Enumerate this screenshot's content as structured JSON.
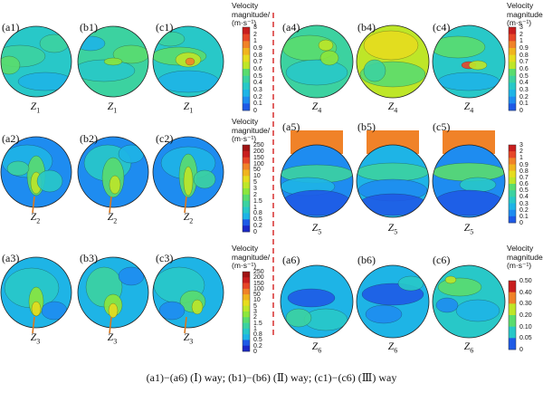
{
  "figure": {
    "panels": [
      {
        "id": "a1",
        "label": "(a1)",
        "zone": "1",
        "zone_letter": "Z"
      },
      {
        "id": "b1",
        "label": "(b1)",
        "zone": "1",
        "zone_letter": "Z"
      },
      {
        "id": "c1",
        "label": "(c1)",
        "zone": "1",
        "zone_letter": "Z"
      },
      {
        "id": "a2",
        "label": "(a2)",
        "zone": "2",
        "zone_letter": "Z"
      },
      {
        "id": "b2",
        "label": "(b2)",
        "zone": "2",
        "zone_letter": "Z"
      },
      {
        "id": "c2",
        "label": "(c2)",
        "zone": "2",
        "zone_letter": "Z"
      },
      {
        "id": "a3",
        "label": "(a3)",
        "zone": "3",
        "zone_letter": "Z"
      },
      {
        "id": "b3",
        "label": "(b3)",
        "zone": "3",
        "zone_letter": "Z"
      },
      {
        "id": "c3",
        "label": "(c3)",
        "zone": "3",
        "zone_letter": "Z"
      },
      {
        "id": "a4",
        "label": "(a4)",
        "zone": "4",
        "zone_letter": "Z"
      },
      {
        "id": "b4",
        "label": "(b4)",
        "zone": "4",
        "zone_letter": "Z"
      },
      {
        "id": "c4",
        "label": "(c4)",
        "zone": "4",
        "zone_letter": "Z"
      },
      {
        "id": "a5",
        "label": "(a5)",
        "zone": "5",
        "zone_letter": "Z"
      },
      {
        "id": "b5",
        "label": "(b5)",
        "zone": "5",
        "zone_letter": "Z"
      },
      {
        "id": "c5",
        "label": "(c5)",
        "zone": "5",
        "zone_letter": "Z"
      },
      {
        "id": "a6",
        "label": "(a6)",
        "zone": "6",
        "zone_letter": "Z"
      },
      {
        "id": "b6",
        "label": "(b6)",
        "zone": "6",
        "zone_letter": "Z"
      },
      {
        "id": "c6",
        "label": "(c6)",
        "zone": "6",
        "zone_letter": "Z"
      }
    ],
    "colorbars": [
      {
        "id": "cb1",
        "title_line1": "Velocity",
        "title_line2": "magnitude/",
        "title_line3": "(m·s⁻¹)",
        "ticks": [
          "3",
          "2",
          "1",
          "0.9",
          "0.8",
          "0.7",
          "0.6",
          "0.5",
          "0.4",
          "0.3",
          "0.2",
          "0.1",
          "0"
        ]
      },
      {
        "id": "cb2",
        "title_line1": "Velocity",
        "title_line2": "magnitude/",
        "title_line3": "(m·s⁻¹)",
        "ticks": [
          "250",
          "200",
          "150",
          "100",
          "50",
          "10",
          "5",
          "3",
          "2",
          "1.5",
          "1",
          "0.8",
          "0.5",
          "0.2",
          "0"
        ]
      },
      {
        "id": "cb3",
        "title_line1": "Velocity",
        "title_line2": "magnitude/",
        "title_line3": "(m·s⁻¹)",
        "ticks": [
          "250",
          "200",
          "150",
          "100",
          "50",
          "10",
          "5",
          "3",
          "2",
          "1.5",
          "1",
          "0.8",
          "0.5",
          "0.2",
          "0"
        ]
      },
      {
        "id": "cb4",
        "title_line1": "Velocity",
        "title_line2": "magnitude/",
        "title_line3": "(m·s⁻¹)",
        "ticks": [
          "3",
          "2",
          "1",
          "0.9",
          "0.8",
          "0.7",
          "0.6",
          "0.5",
          "0.4",
          "0.3",
          "0.2",
          "0.1",
          "0"
        ]
      },
      {
        "id": "cb5",
        "title_line1": "",
        "title_line2": "",
        "title_line3": "",
        "ticks": [
          "3",
          "2",
          "1",
          "0.9",
          "0.8",
          "0.7",
          "0.6",
          "0.5",
          "0.4",
          "0.3",
          "0.2",
          "0.1",
          "0"
        ]
      },
      {
        "id": "cb6",
        "title_line1": "Velocity",
        "title_line2": "magnitude/",
        "title_line3": "(m·s⁻¹)",
        "ticks": [
          "0.50",
          "0.40",
          "0.30",
          "0.20",
          "0.10",
          "0.05",
          "0"
        ]
      }
    ],
    "colormap": [
      "#1a28c8",
      "#1e5ae6",
      "#1e8cf0",
      "#1eb4e6",
      "#28c8c8",
      "#3cd2a0",
      "#5adc6e",
      "#8ce63c",
      "#bee628",
      "#e6dc1e",
      "#f0b41e",
      "#f08228",
      "#e64628",
      "#c81e1e",
      "#a01414"
    ]
  },
  "caption": {
    "text": "(a1)−(a6) (Ⅰ) way; (b1)−(b6) (Ⅱ) way; (c1)−(c6) (Ⅲ) way"
  }
}
